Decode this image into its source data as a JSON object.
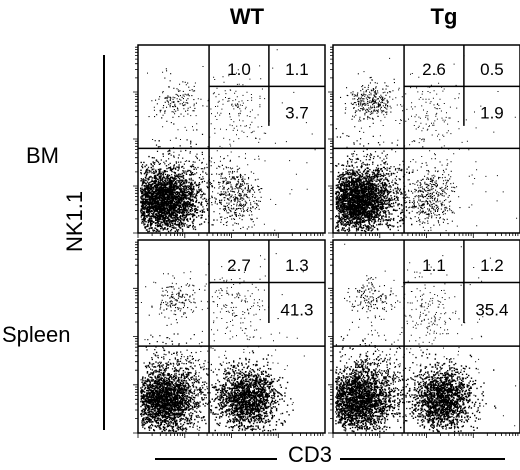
{
  "columns": [
    "WT",
    "Tg"
  ],
  "rows": [
    "BM",
    "Spleen"
  ],
  "axes": {
    "x_label": "CD3",
    "y_label": "NK1.1"
  },
  "chart_data": {
    "type": "scatter",
    "title": "",
    "xlabel": "CD3",
    "ylabel": "NK1.1",
    "panels": [
      {
        "row": "BM",
        "column": "WT",
        "quadrants": [
          "1.0",
          "1.1",
          "3.7"
        ]
      },
      {
        "row": "BM",
        "column": "Tg",
        "quadrants": [
          "2.6",
          "0.5",
          "1.9"
        ]
      },
      {
        "row": "Spleen",
        "column": "WT",
        "quadrants": [
          "2.7",
          "1.3",
          "41.3"
        ]
      },
      {
        "row": "Spleen",
        "column": "Tg",
        "quadrants": [
          "1.1",
          "1.2",
          "35.4"
        ]
      }
    ]
  }
}
